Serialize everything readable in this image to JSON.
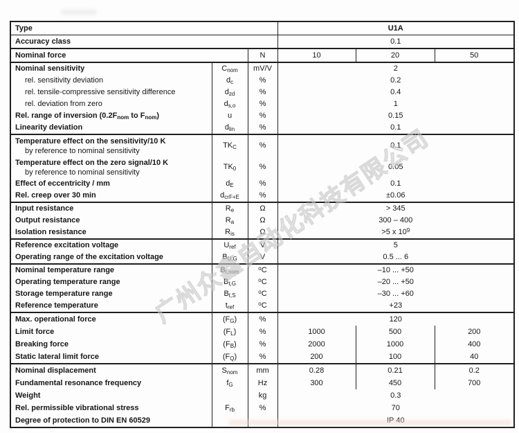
{
  "watermark": {
    "text": "广州众鑫自动化科技有限公司"
  },
  "table": {
    "header": {
      "type_label": "Type",
      "type_value": "U1A",
      "accuracy_label": "Accuracy class",
      "accuracy_value": "0.1",
      "force_label": "Nominal force",
      "force_unit": "N",
      "force_values": [
        "10",
        "20",
        "50"
      ]
    },
    "rows": [
      {
        "group": true,
        "label": "Nominal sensitivity",
        "symbol": "C_{nom}",
        "unit": "mV/V",
        "value": "2"
      },
      {
        "indent": true,
        "label": "rel. sensitivity deviation",
        "symbol": "d_{c}",
        "unit": "%",
        "value": "0.2"
      },
      {
        "indent": true,
        "label": "rel. tensile-compressive sensitivity difference",
        "symbol": "d_{zd}",
        "unit": "%",
        "value": "0.4"
      },
      {
        "indent": true,
        "label": "rel. deviation from zero",
        "symbol": "d_{s,o}",
        "unit": "%",
        "value": "1"
      },
      {
        "label": "Rel. range of inversion (0.2F_{nom} to F_{nom})",
        "symbol": "u",
        "unit": "%",
        "value": "0.15"
      },
      {
        "label": "Linearity deviation",
        "symbol": "d_{lin}",
        "unit": "%",
        "value": "0.1"
      },
      {
        "group": true,
        "double": true,
        "label": "Temperature effect on the sensitivity/10 K",
        "sublabel": "by reference to nominal sensitivity",
        "symbol": "TK_{C}",
        "unit": "%",
        "value": "0.1"
      },
      {
        "double": true,
        "label": "Temperature effect on the zero signal/10 K",
        "sublabel": "by reference to nominal sensitivity",
        "symbol": "TK_{0}",
        "unit": "%",
        "value": "0.05"
      },
      {
        "label": "Effect of eccentricity / mm",
        "symbol": "d_{E}",
        "unit": "%",
        "value": "0.1"
      },
      {
        "label": "Rel. creep over 30 min",
        "symbol": "d_{crF+E}",
        "unit": "%",
        "value": "±0.06"
      },
      {
        "group": true,
        "label": "Input resistance",
        "symbol": "R_{e}",
        "unit": "Ω",
        "value": "> 345"
      },
      {
        "label": "Output resistance",
        "symbol": "R_{a}",
        "unit": "Ω",
        "value": "300 – 400"
      },
      {
        "label": "Isolation resistance",
        "symbol": "R_{is}",
        "unit": "Ω",
        "value": ">5 x 10^{9}"
      },
      {
        "group": true,
        "label": "Reference excitation voltage",
        "symbol": "U_{ref}",
        "unit": "V",
        "value": "5"
      },
      {
        "label": "Operating range of the excitation voltage",
        "symbol": "B_{U,G}",
        "unit": "V",
        "value": "0.5 ... 6"
      },
      {
        "group": true,
        "label": "Nominal temperature range",
        "symbol": "B_{t,nom}",
        "unit": "^{o}C",
        "value": "–10 ... +50"
      },
      {
        "label": "Operating temperature range",
        "symbol": "B_{t,G}",
        "unit": "^{o}C",
        "value": "–20 ... +50"
      },
      {
        "label": "Storage temperature range",
        "symbol": "B_{t,S}",
        "unit": "^{o}C",
        "value": "–30 ... +60"
      },
      {
        "label": "Reference temperature",
        "symbol": "t_{ref}",
        "unit": "^{o}C",
        "value": "+23"
      },
      {
        "group": true,
        "tall": true,
        "label": "Max. operational force",
        "symbol": "(F_{G})",
        "unit": "%",
        "value": "120"
      },
      {
        "tall": true,
        "label": "Limit force",
        "symbol": "(F_{L})",
        "unit": "%",
        "values": [
          "1000",
          "500",
          "200"
        ]
      },
      {
        "tall": true,
        "label": "Breaking force",
        "symbol": "(F_{B})",
        "unit": "%",
        "values": [
          "2000",
          "1000",
          "400"
        ]
      },
      {
        "tall": true,
        "label": "Static lateral limit force",
        "symbol": "(F_{Q})",
        "unit": "%",
        "values": [
          "200",
          "100",
          "40"
        ]
      },
      {
        "group": true,
        "tall": true,
        "label": "Nominal displacement",
        "symbol": "S_{nom}",
        "unit": "mm",
        "values": [
          "0.28",
          "0.21",
          "0.2"
        ]
      },
      {
        "tall": true,
        "label": "Fundamental resonance frequency",
        "symbol": "f_{G}",
        "unit": "Hz",
        "values": [
          "300",
          "450",
          "700"
        ]
      },
      {
        "tall": true,
        "label": "Weight",
        "symbol": "",
        "unit": "kg",
        "value": "0.3"
      },
      {
        "tall": true,
        "label": "Rel. permissible vibrational stress",
        "symbol": "F_{rb}",
        "unit": "%",
        "value": "70"
      },
      {
        "tall": true,
        "label": "Degree of protection to DIN EN 60529",
        "symbol": "",
        "unit": "",
        "value": "IP 40"
      }
    ]
  }
}
